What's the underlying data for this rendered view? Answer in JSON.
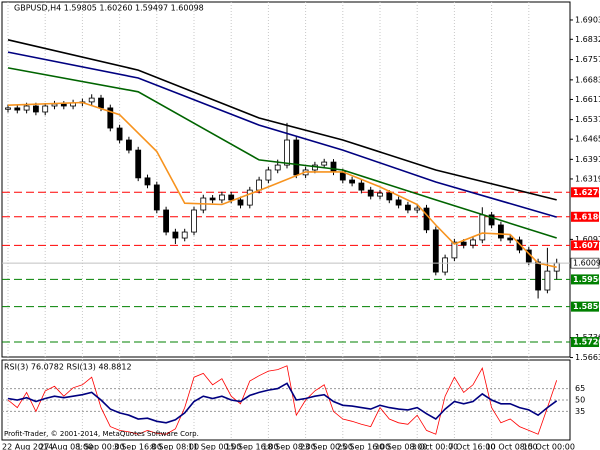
{
  "chart_data": [
    {
      "type": "candlestick",
      "title": "GBPUSD,H4  1.59805 1.60260 1.59497 1.60098",
      "categories": [
        "22 Aug 2014",
        null,
        null,
        null,
        "27 Aug 08:00",
        null,
        null,
        null,
        "1 Sep 00:00",
        null,
        null,
        null,
        "3 Sep 16:00",
        null,
        null,
        null,
        "8 Sep 08:00",
        null,
        null,
        null,
        "11 Sep 00:00",
        null,
        null,
        null,
        "15 Sep 16:00",
        null,
        null,
        null,
        "18 Sep 08:00",
        null,
        null,
        null,
        "23 Sep 00:00",
        null,
        null,
        null,
        "25 Sep 16:00",
        null,
        null,
        null,
        "30 Sep 08:00",
        null,
        null,
        null,
        "3 Oct 00:00",
        null,
        null,
        null,
        "7 Oct 16:00",
        null,
        null,
        null,
        "10 Oct 08:00",
        null,
        null,
        null,
        "15 Oct 00:00",
        null,
        null,
        null
      ],
      "open": [
        1.6575,
        1.658,
        1.6572,
        1.6587,
        1.6565,
        1.6587,
        1.6594,
        1.6587,
        1.6598,
        1.6602,
        1.6616,
        1.658,
        1.6506,
        1.6462,
        1.6425,
        1.6323,
        1.6297,
        1.6205,
        1.6124,
        1.6102,
        1.6124,
        1.6205,
        1.6249,
        1.6242,
        1.626,
        1.6242,
        1.6223,
        1.6278,
        1.6315,
        1.6352,
        1.637,
        1.6462,
        1.6334,
        1.6352,
        1.637,
        1.6381,
        1.6345,
        1.6315,
        1.6304,
        1.6278,
        1.6256,
        1.6267,
        1.6242,
        1.6223,
        1.6205,
        1.6212,
        1.6132,
        1.5977,
        1.6029,
        1.6087,
        1.6076,
        1.6095,
        1.6187,
        1.615,
        1.6102,
        1.6095,
        1.6058,
        1.6014,
        1.5911,
        1.59805
      ],
      "high": [
        1.6592,
        1.6592,
        1.6599,
        1.6599,
        1.6598,
        1.6606,
        1.6605,
        1.661,
        1.6614,
        1.663,
        1.6628,
        1.6592,
        1.6518,
        1.6474,
        1.6437,
        1.6335,
        1.6309,
        1.6217,
        1.6136,
        1.6136,
        1.6217,
        1.6261,
        1.626,
        1.6272,
        1.6271,
        1.6254,
        1.629,
        1.6327,
        1.6364,
        1.639,
        1.6525,
        1.6474,
        1.6364,
        1.6382,
        1.6393,
        1.6392,
        1.6357,
        1.6327,
        1.6316,
        1.629,
        1.6279,
        1.6278,
        1.6254,
        1.6235,
        1.6224,
        1.6224,
        1.6144,
        1.6041,
        1.6099,
        1.6098,
        1.6107,
        1.6215,
        1.6198,
        1.6162,
        1.6114,
        1.6107,
        1.607,
        1.6026,
        1.6066,
        1.6026
      ],
      "low": [
        1.6563,
        1.656,
        1.656,
        1.6553,
        1.6553,
        1.6575,
        1.6575,
        1.6575,
        1.6586,
        1.659,
        1.6568,
        1.6494,
        1.645,
        1.6413,
        1.6311,
        1.6285,
        1.6193,
        1.6112,
        1.608,
        1.609,
        1.6112,
        1.6193,
        1.623,
        1.623,
        1.623,
        1.6211,
        1.6211,
        1.6266,
        1.6303,
        1.634,
        1.6358,
        1.6322,
        1.6322,
        1.634,
        1.6358,
        1.6333,
        1.6303,
        1.6292,
        1.6266,
        1.6244,
        1.6244,
        1.623,
        1.6211,
        1.6193,
        1.6193,
        1.612,
        1.5965,
        1.5965,
        1.6017,
        1.6064,
        1.6064,
        1.6083,
        1.6138,
        1.609,
        1.6083,
        1.6046,
        1.6002,
        1.588,
        1.5899,
        1.59497
      ],
      "close": [
        1.658,
        1.6572,
        1.6587,
        1.6565,
        1.6587,
        1.6594,
        1.6587,
        1.6598,
        1.6602,
        1.6616,
        1.658,
        1.6506,
        1.6462,
        1.6425,
        1.6323,
        1.6297,
        1.6205,
        1.6124,
        1.6102,
        1.6124,
        1.6205,
        1.6249,
        1.6242,
        1.626,
        1.6242,
        1.6223,
        1.6278,
        1.6315,
        1.6352,
        1.637,
        1.6462,
        1.6334,
        1.6352,
        1.637,
        1.6381,
        1.6345,
        1.6315,
        1.6304,
        1.6278,
        1.6256,
        1.6267,
        1.6242,
        1.6223,
        1.6205,
        1.6212,
        1.6132,
        1.5977,
        1.6029,
        1.6087,
        1.6076,
        1.6095,
        1.6187,
        1.615,
        1.6102,
        1.6095,
        1.6058,
        1.6014,
        1.5911,
        1.59805,
        1.60098
      ],
      "series": [
        {
          "color": "#000000",
          "x": [
            0,
            14,
            27,
            36,
            46,
            59
          ],
          "values": [
            1.683,
            1.6719,
            1.6543,
            1.6462,
            1.6352,
            1.6242
          ]
        },
        {
          "color": "#000080",
          "x": [
            0,
            14,
            27,
            36,
            46,
            59
          ],
          "values": [
            1.6785,
            1.669,
            1.6517,
            1.6425,
            1.6308,
            1.6179
          ]
        },
        {
          "color": "#006400",
          "x": [
            0,
            14,
            27,
            36,
            46,
            59
          ],
          "values": [
            1.6727,
            1.6639,
            1.6389,
            1.6352,
            1.6242,
            1.6102
          ]
        },
        {
          "color": "#f7931e",
          "x": [
            0,
            8,
            12,
            16,
            19,
            23,
            28,
            32,
            36,
            40,
            44,
            46,
            48,
            51,
            54,
            57,
            59
          ],
          "values": [
            1.659,
            1.66,
            1.6555,
            1.642,
            1.623,
            1.6225,
            1.629,
            1.6345,
            1.6345,
            1.629,
            1.6225,
            1.615,
            1.608,
            1.612,
            1.6115,
            1.601,
            1.5995
          ]
        }
      ],
      "ylim": [
        1.5665,
        1.6969
      ],
      "yticks": [
        {
          "value": 1.6903,
          "label": "1.69030"
        },
        {
          "value": 1.6832,
          "label": "1.68320"
        },
        {
          "value": 1.67575,
          "label": "1.67575"
        },
        {
          "value": 1.6683,
          "label": "1.66830"
        },
        {
          "value": 1.6611,
          "label": "1.66110"
        },
        {
          "value": 1.6537,
          "label": "1.65370"
        },
        {
          "value": 1.6465,
          "label": "1.64650"
        },
        {
          "value": 1.6391,
          "label": "1.63910"
        },
        {
          "value": 1.6319,
          "label": "1.63190"
        },
        {
          "value": 1.6097,
          "label": "1.60970"
        },
        {
          "value": 1.5736,
          "label": "1.57360"
        },
        {
          "value": 1.5663,
          "label": "1.56630"
        }
      ],
      "levels": [
        {
          "value": 1.627,
          "label": "1.62700",
          "color": "#ff0000"
        },
        {
          "value": 1.618,
          "label": "1.61800",
          "color": "#ff0000"
        },
        {
          "value": 1.6075,
          "label": "1.60750",
          "color": "#ff0000"
        },
        {
          "value": 1.595,
          "label": "1.59500",
          "color": "#008000"
        },
        {
          "value": 1.585,
          "label": "1.58500",
          "color": "#008000"
        },
        {
          "value": 1.572,
          "label": "1.57200",
          "color": "#008000"
        }
      ],
      "last": 1.60098,
      "grid": true
    },
    {
      "type": "line",
      "title": "RSI(3) 76.0782 RSI(13) 48.8812",
      "series": [
        {
          "color": "#ff0000",
          "values": [
            50,
            40,
            60,
            35,
            62,
            68,
            55,
            66,
            70,
            80,
            40,
            15,
            10,
            8,
            5,
            10,
            6,
            5,
            12,
            40,
            80,
            85,
            70,
            78,
            55,
            45,
            75,
            82,
            88,
            90,
            95,
            30,
            50,
            62,
            70,
            35,
            25,
            22,
            18,
            15,
            40,
            25,
            20,
            18,
            30,
            10,
            5,
            55,
            80,
            60,
            70,
            92,
            40,
            20,
            25,
            15,
            10,
            5,
            40,
            76
          ]
        },
        {
          "color": "#000080",
          "values": [
            52,
            50,
            53,
            48,
            52,
            55,
            53,
            55,
            57,
            60,
            50,
            38,
            33,
            30,
            25,
            26,
            22,
            20,
            24,
            33,
            48,
            55,
            52,
            55,
            50,
            48,
            56,
            60,
            63,
            65,
            72,
            50,
            52,
            55,
            57,
            48,
            43,
            42,
            40,
            38,
            43,
            40,
            38,
            37,
            40,
            32,
            25,
            38,
            48,
            45,
            48,
            58,
            50,
            45,
            45,
            40,
            37,
            30,
            40,
            49
          ]
        }
      ],
      "ylim": [
        0,
        100
      ],
      "yticks": [
        35,
        50,
        65
      ]
    }
  ],
  "footer": "Profit-Trader, © 2001-2014, MetaQuotes Software Corp."
}
